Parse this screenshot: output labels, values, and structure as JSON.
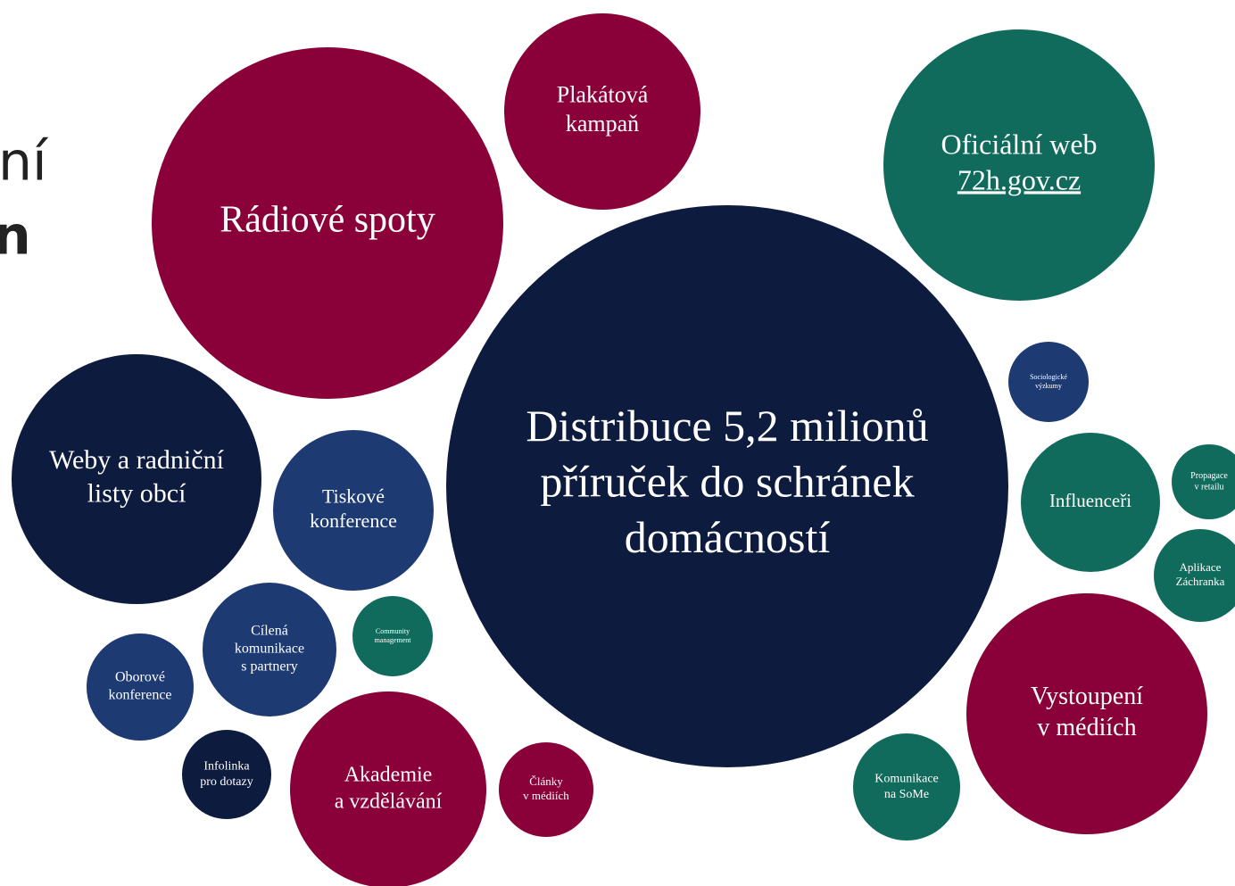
{
  "left_fragments": [
    "ní",
    "n"
  ],
  "nodes": [
    {
      "lines": [
        "Rádiové spoty"
      ]
    },
    {
      "lines": [
        "Plakátová",
        "kampaň"
      ]
    },
    {
      "lines": [
        "Oficiální web",
        "72h.gov.cz"
      ]
    },
    {
      "lines": [
        "Distribuce 5,2 milionů",
        "příruček do schránek",
        "domácností"
      ]
    },
    {
      "lines": [
        "Weby a radniční",
        "listy obcí"
      ]
    },
    {
      "lines": [
        "Tiskové",
        "konference"
      ]
    },
    {
      "lines": [
        "Cílená",
        "komunikace",
        "s partnery"
      ]
    },
    {
      "lines": [
        "Community",
        "management"
      ]
    },
    {
      "lines": [
        "Oborové",
        "konference"
      ]
    },
    {
      "lines": [
        "Infolinka",
        "pro dotazy"
      ]
    },
    {
      "lines": [
        "Akademie",
        "a vzdělávání"
      ]
    },
    {
      "lines": [
        "Články",
        "v médiích"
      ]
    },
    {
      "lines": [
        "Sociologické",
        "výzkumy"
      ]
    },
    {
      "lines": [
        "Influenceři"
      ]
    },
    {
      "lines": [
        "Propagace",
        "v retailu"
      ]
    },
    {
      "lines": [
        "Aplikace",
        "Záchranka"
      ]
    },
    {
      "lines": [
        "Vystoupení",
        "v médiích"
      ]
    },
    {
      "lines": [
        "Komunikace",
        "na SoMe"
      ]
    }
  ]
}
